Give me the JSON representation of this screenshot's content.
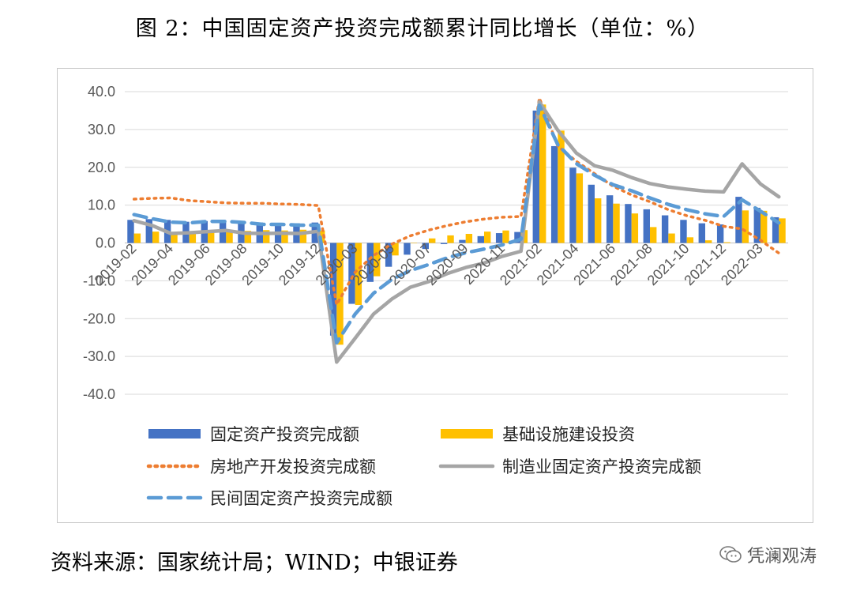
{
  "page": {
    "title": "图 2：中国固定资产投资完成额累计同比增长（单位：%）",
    "source": "资料来源：国家统计局；WIND；中银证券",
    "watermark": "凭澜观涛",
    "watermark_icon": "wechat-icon"
  },
  "chart_data": {
    "type": "bar+line",
    "title": "",
    "xlabel": "",
    "ylabel": "",
    "ylim": [
      -40,
      40
    ],
    "yticks": [
      -40,
      -30,
      -20,
      -10,
      0,
      10,
      20,
      30,
      40
    ],
    "ytick_labels": [
      "-40.0",
      "-30.0",
      "-20.0",
      "-10.0",
      "0.0",
      "10.0",
      "20.0",
      "30.0",
      "40.0"
    ],
    "grid": true,
    "legend_position": "bottom",
    "categories": [
      "2019-02",
      "2019-03",
      "2019-04",
      "2019-05",
      "2019-06",
      "2019-07",
      "2019-08",
      "2019-09",
      "2019-10",
      "2019-11",
      "2019-12",
      "2020-02",
      "2020-03",
      "2020-04",
      "2020-05",
      "2020-06",
      "2020-07",
      "2020-08",
      "2020-09",
      "2020-10",
      "2020-11",
      "2020-12",
      "2021-02",
      "2021-03",
      "2021-04",
      "2021-05",
      "2021-06",
      "2021-07",
      "2021-08",
      "2021-09",
      "2021-10",
      "2021-11",
      "2021-12",
      "2022-02",
      "2022-03",
      "2022-04"
    ],
    "tick_labels": [
      "2019-02",
      "2019-04",
      "2019-06",
      "2019-08",
      "2019-10",
      "2019-12",
      "2020-03",
      "2020-05",
      "2020-07",
      "2020-09",
      "2020-11",
      "2021-02",
      "2021-04",
      "2021-06",
      "2021-08",
      "2021-10",
      "2021-12",
      "2022-03"
    ],
    "series": [
      {
        "name": "固定资产投资完成额",
        "kind": "bar",
        "color": "#4472C4",
        "values": [
          6.1,
          6.3,
          6.1,
          5.6,
          5.8,
          5.7,
          5.5,
          5.4,
          5.2,
          5.2,
          5.4,
          -24.5,
          -16.1,
          -10.3,
          -6.3,
          -3.1,
          -1.6,
          -0.3,
          0.8,
          1.8,
          2.6,
          2.9,
          35.0,
          25.6,
          19.9,
          15.4,
          12.6,
          10.3,
          8.9,
          7.3,
          6.1,
          5.2,
          4.9,
          12.2,
          9.3,
          6.8
        ]
      },
      {
        "name": "基础设施建设投资",
        "kind": "bar",
        "color": "#FFC000",
        "values": [
          2.5,
          3.0,
          2.6,
          2.6,
          2.9,
          2.9,
          3.2,
          3.4,
          3.3,
          3.5,
          3.3,
          -26.9,
          -16.4,
          -8.8,
          -3.3,
          -0.1,
          1.2,
          2.0,
          2.4,
          3.0,
          3.3,
          3.4,
          36.6,
          29.7,
          18.4,
          11.8,
          10.4,
          7.8,
          4.2,
          2.5,
          1.5,
          0.7,
          0.2,
          8.6,
          8.5,
          6.5
        ]
      },
      {
        "name": "房地产开发投资完成额",
        "kind": "line",
        "style": "dotted",
        "color": "#ED7D31",
        "values": [
          11.6,
          11.8,
          11.9,
          11.2,
          10.9,
          10.6,
          10.5,
          10.5,
          10.3,
          10.2,
          9.9,
          -16.3,
          -7.7,
          -3.3,
          -0.3,
          1.9,
          3.4,
          4.6,
          5.6,
          6.3,
          6.8,
          7.0,
          38.3,
          25.6,
          21.6,
          18.3,
          15.0,
          12.7,
          10.9,
          8.8,
          7.2,
          6.0,
          4.4,
          3.7,
          0.7,
          -2.7
        ]
      },
      {
        "name": "制造业固定资产投资完成额",
        "kind": "line",
        "style": "solid",
        "color": "#A5A5A5",
        "values": [
          5.9,
          4.6,
          2.5,
          2.7,
          3.0,
          3.3,
          2.6,
          2.5,
          2.6,
          2.5,
          3.1,
          -31.5,
          -25.2,
          -18.8,
          -14.8,
          -11.7,
          -10.2,
          -8.1,
          -6.5,
          -5.3,
          -3.5,
          -2.2,
          37.3,
          29.8,
          23.8,
          20.4,
          19.2,
          17.3,
          15.7,
          14.8,
          14.2,
          13.7,
          13.5,
          20.9,
          15.6,
          12.2
        ]
      },
      {
        "name": "民间固定资产投资完成额",
        "kind": "line",
        "style": "dashed",
        "color": "#5B9BD5",
        "values": [
          7.5,
          6.4,
          5.5,
          5.3,
          5.7,
          5.7,
          5.4,
          4.9,
          4.9,
          4.7,
          4.7,
          -26.4,
          -18.8,
          -13.3,
          -9.6,
          -7.3,
          -5.7,
          -3.9,
          -2.6,
          -1.6,
          -0.5,
          1.0,
          36.4,
          26.0,
          21.0,
          17.9,
          15.4,
          13.8,
          11.9,
          10.2,
          8.8,
          7.7,
          7.0,
          11.4,
          8.4,
          5.3
        ]
      }
    ]
  }
}
